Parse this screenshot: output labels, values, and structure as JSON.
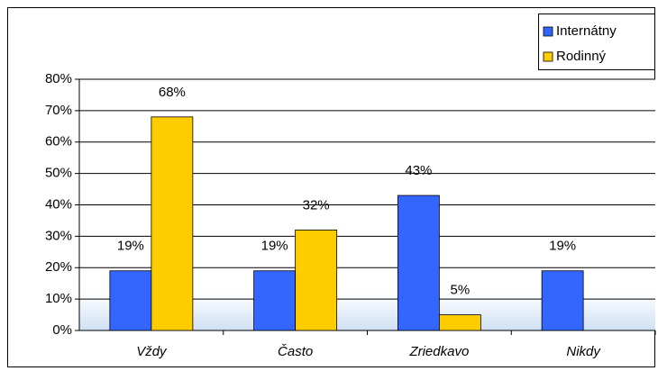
{
  "chart_data": {
    "type": "bar",
    "categories": [
      "Vždy",
      "Často",
      "Zriedkavo",
      "Nikdy"
    ],
    "series": [
      {
        "name": "Internátny",
        "color": "#3366ff",
        "values": [
          19,
          19,
          43,
          19
        ],
        "value_labels": [
          "19%",
          "19%",
          "43%",
          "19%"
        ]
      },
      {
        "name": "Rodinný",
        "color": "#ffcc00",
        "values": [
          68,
          32,
          5,
          null
        ],
        "value_labels": [
          "68%",
          "32%",
          "5%",
          null
        ]
      }
    ],
    "ylim": [
      0,
      80
    ],
    "yticks": [
      {
        "value": 0,
        "label": "0%"
      },
      {
        "value": 10,
        "label": "10%"
      },
      {
        "value": 20,
        "label": "20%"
      },
      {
        "value": 30,
        "label": "30%"
      },
      {
        "value": 40,
        "label": "40%"
      },
      {
        "value": 50,
        "label": "50%"
      },
      {
        "value": 60,
        "label": "60%"
      },
      {
        "value": 70,
        "label": "70%"
      },
      {
        "value": 80,
        "label": "80%"
      }
    ],
    "grid": true,
    "legend": "top-right"
  }
}
